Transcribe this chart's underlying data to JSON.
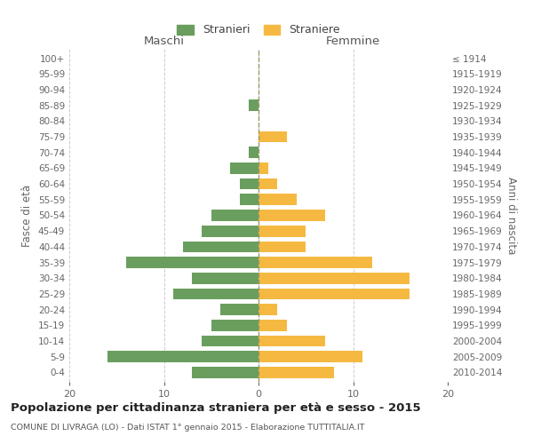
{
  "age_groups_bottom_to_top": [
    "0-4",
    "5-9",
    "10-14",
    "15-19",
    "20-24",
    "25-29",
    "30-34",
    "35-39",
    "40-44",
    "45-49",
    "50-54",
    "55-59",
    "60-64",
    "65-69",
    "70-74",
    "75-79",
    "80-84",
    "85-89",
    "90-94",
    "95-99",
    "100+"
  ],
  "birth_years_bottom_to_top": [
    "2010-2014",
    "2005-2009",
    "2000-2004",
    "1995-1999",
    "1990-1994",
    "1985-1989",
    "1980-1984",
    "1975-1979",
    "1970-1974",
    "1965-1969",
    "1960-1964",
    "1955-1959",
    "1950-1954",
    "1945-1949",
    "1940-1944",
    "1935-1939",
    "1930-1934",
    "1925-1929",
    "1920-1924",
    "1915-1919",
    "≤ 1914"
  ],
  "maschi_bottom_to_top": [
    7,
    16,
    6,
    5,
    4,
    9,
    7,
    14,
    8,
    6,
    5,
    2,
    2,
    3,
    1,
    0,
    0,
    1,
    0,
    0,
    0
  ],
  "femmine_bottom_to_top": [
    8,
    11,
    7,
    3,
    2,
    16,
    16,
    12,
    5,
    5,
    7,
    4,
    2,
    1,
    0,
    3,
    0,
    0,
    0,
    0,
    0
  ],
  "color_maschi": "#6a9e5e",
  "color_femmine": "#f5b942",
  "background_color": "#ffffff",
  "grid_color": "#cccccc",
  "title": "Popolazione per cittadinanza straniera per età e sesso - 2015",
  "subtitle": "COMUNE DI LIVRAGA (LO) - Dati ISTAT 1° gennaio 2015 - Elaborazione TUTTITALIA.IT",
  "xlabel_left": "Maschi",
  "xlabel_right": "Femmine",
  "ylabel_left": "Fasce di età",
  "ylabel_right": "Anni di nascita",
  "legend_stranieri": "Stranieri",
  "legend_straniere": "Straniere",
  "xlim": 20
}
